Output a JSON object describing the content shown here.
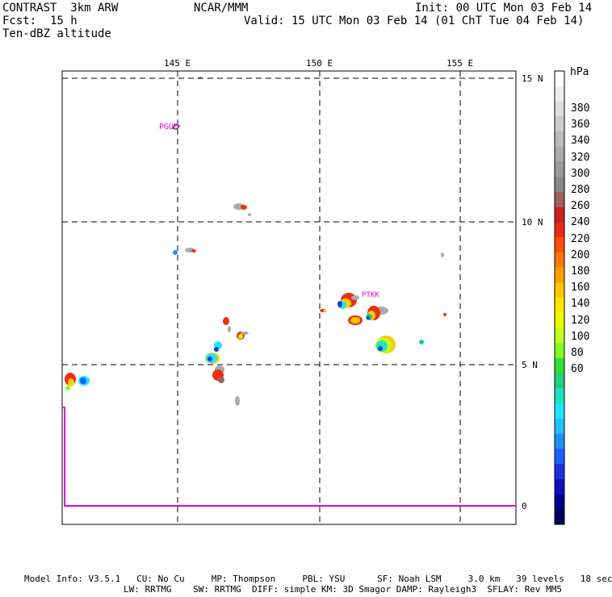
{
  "header": {
    "model": "CONTRAST  3km ARW",
    "center": "NCAR/MMM",
    "init": "Init: 00 UTC Mon 03 Feb 14",
    "fcst": "Fcst:  15 h",
    "valid": "Valid: 15 UTC Mon 03 Feb 14 (01 ChT Tue 04 Feb 14)",
    "field": "Ten-dBZ altitude"
  },
  "lon_labels": [
    "145 E",
    "150 E",
    "155 E"
  ],
  "lat_labels": [
    "15 N",
    "10 N",
    "5 N",
    "0"
  ],
  "stations": [
    "PGUM",
    "PTKK"
  ],
  "colorbar": {
    "unit": "hPa",
    "labels": [
      "380",
      "360",
      "340",
      "320",
      "300",
      "280",
      "260",
      "240",
      "220",
      "200",
      "180",
      "160",
      "140",
      "120",
      "100",
      "80",
      "60"
    ],
    "colors": [
      "#ffffff",
      "#eeeeee",
      "#dddddd",
      "#cccccc",
      "#bbbbbb",
      "#aaaaaa",
      "#999999",
      "#888888",
      "#a06060",
      "#cc2020",
      "#ee2a10",
      "#ff5000",
      "#ff7800",
      "#ffa000",
      "#ffc800",
      "#ffe600",
      "#e6ff00",
      "#c0ff20",
      "#80ff20",
      "#30e030",
      "#20d080",
      "#20e0c0",
      "#20e6ff",
      "#20c0ff",
      "#2090ff",
      "#2060ff",
      "#2030e0",
      "#1010c0",
      "#000090",
      "#000060"
    ]
  },
  "footer": {
    "line1": "Model Info: V3.5.1   CU: No Cu     MP: Thompson     PBL: YSU      SF: Noah LSM     3.0 km   39 levels   18 sec",
    "line2": "LW: RRTMG    SW: RRTMG  DIFF: simple KM: 3D Smagor DAMP: Rayleigh3  SFLAY: Rev MM5"
  }
}
